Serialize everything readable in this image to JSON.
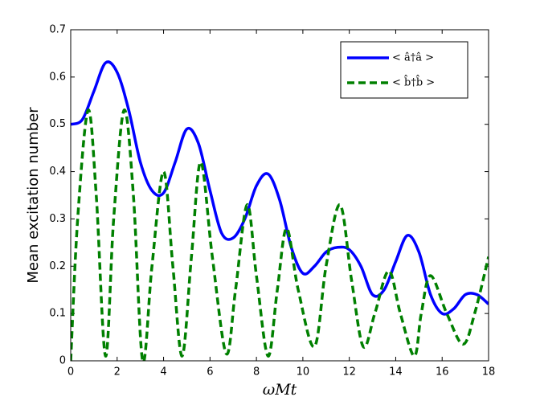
{
  "chart_data": {
    "type": "line",
    "xlabel": "ωMt",
    "ylabel": "Mean excitation number",
    "xlim": [
      0,
      18
    ],
    "xticks": [
      0,
      2,
      4,
      6,
      8,
      10,
      12,
      14,
      16,
      18
    ],
    "ylim": [
      0,
      0.7
    ],
    "yticks": [
      0,
      0.1,
      0.2,
      0.3,
      0.4,
      0.5,
      0.6,
      0.7
    ],
    "legend": "northeast",
    "series": [
      {
        "name": "< â†â >",
        "color": "#0000ff",
        "dash": false,
        "x": [
          0,
          0.5,
          1,
          1.5,
          2,
          2.5,
          3,
          3.5,
          4,
          4.5,
          5,
          5.5,
          6,
          6.5,
          7,
          7.5,
          8,
          8.5,
          9,
          9.5,
          10,
          10.5,
          11,
          11.5,
          12,
          12.5,
          13,
          13.5,
          14,
          14.5,
          15,
          15.5,
          16,
          16.5,
          17,
          17.5,
          18
        ],
        "values": [
          0.5,
          0.51,
          0.57,
          0.63,
          0.61,
          0.53,
          0.42,
          0.36,
          0.355,
          0.42,
          0.49,
          0.46,
          0.36,
          0.27,
          0.26,
          0.3,
          0.37,
          0.395,
          0.34,
          0.24,
          0.185,
          0.2,
          0.23,
          0.24,
          0.235,
          0.2,
          0.14,
          0.15,
          0.21,
          0.265,
          0.23,
          0.14,
          0.1,
          0.11,
          0.14,
          0.14,
          0.12
        ]
      },
      {
        "name": "< b̂†b̂ >",
        "color": "#008000",
        "dash": true,
        "x": [
          0,
          0.3,
          0.75,
          1.1,
          1.5,
          1.85,
          2.3,
          2.7,
          3.1,
          3.5,
          4.0,
          4.4,
          4.8,
          5.2,
          5.6,
          6.1,
          6.7,
          7.1,
          7.6,
          8.0,
          8.5,
          8.9,
          9.3,
          9.8,
          10.5,
          11.0,
          11.6,
          12.1,
          12.6,
          13.1,
          13.7,
          14.2,
          14.8,
          15.1,
          15.5,
          16.2,
          16.9,
          17.4,
          18
        ],
        "values": [
          0.0,
          0.3,
          0.53,
          0.35,
          0.01,
          0.3,
          0.53,
          0.35,
          0.0,
          0.2,
          0.4,
          0.2,
          0.01,
          0.22,
          0.42,
          0.22,
          0.015,
          0.15,
          0.33,
          0.18,
          0.01,
          0.15,
          0.28,
          0.15,
          0.03,
          0.2,
          0.33,
          0.17,
          0.03,
          0.1,
          0.19,
          0.1,
          0.01,
          0.1,
          0.18,
          0.1,
          0.035,
          0.1,
          0.22
        ]
      }
    ]
  }
}
